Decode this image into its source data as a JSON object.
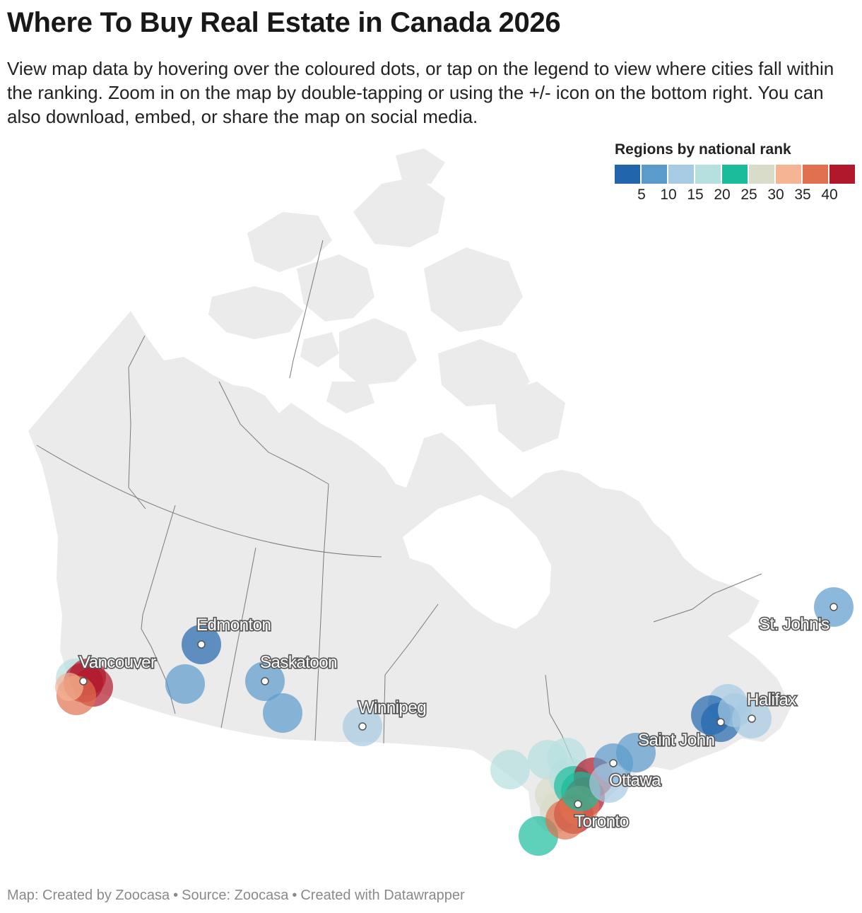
{
  "header": {
    "title": "Where To Buy Real Estate in Canada 2026",
    "description": "View map data by hovering over the coloured dots, or tap on the legend to view where cities fall within the ranking. Zoom in on the map by double-tapping or using the +/- icon on the bottom right. You can also download, embed, or share the map on social media."
  },
  "legend": {
    "title": "Regions by national rank",
    "colors": [
      "#2166ac",
      "#5b9bcc",
      "#a6cbe3",
      "#b6e0df",
      "#1bbc9b",
      "#d8dcc8",
      "#f5b595",
      "#e0704f",
      "#b2182b"
    ],
    "ticks": [
      "5",
      "10",
      "15",
      "20",
      "25",
      "30",
      "35",
      "40"
    ]
  },
  "map": {
    "country": "Canada",
    "cities": [
      {
        "name": "Vancouver"
      },
      {
        "name": "Edmonton"
      },
      {
        "name": "Saskatoon"
      },
      {
        "name": "Winnipeg"
      },
      {
        "name": "Toronto"
      },
      {
        "name": "Ottawa"
      },
      {
        "name": "Saint John"
      },
      {
        "name": "Halifax"
      },
      {
        "name": "St. John's"
      }
    ],
    "markers": [
      {
        "band": 4
      },
      {
        "band": 9
      },
      {
        "band": 9
      },
      {
        "band": 9
      },
      {
        "band": 8
      },
      {
        "band": 7
      },
      {
        "band": 1
      },
      {
        "band": 2
      },
      {
        "band": 2
      },
      {
        "band": 2
      },
      {
        "band": 3
      },
      {
        "band": 4
      },
      {
        "band": 4
      },
      {
        "band": 6
      },
      {
        "band": 4
      },
      {
        "band": 4
      },
      {
        "band": 6
      },
      {
        "band": 5
      },
      {
        "band": 5
      },
      {
        "band": 9
      },
      {
        "band": 9
      },
      {
        "band": 9
      },
      {
        "band": 8
      },
      {
        "band": 8
      },
      {
        "band": 5
      },
      {
        "band": 2
      },
      {
        "band": 2
      },
      {
        "band": 3
      },
      {
        "band": 3
      },
      {
        "band": 1
      },
      {
        "band": 1
      },
      {
        "band": 3
      },
      {
        "band": 3
      },
      {
        "band": 2
      }
    ]
  },
  "footer": {
    "map_credit": "Map: Created by Zoocasa",
    "source": "Source: Zoocasa",
    "tool": "Created with Datawrapper",
    "separator": "•"
  }
}
